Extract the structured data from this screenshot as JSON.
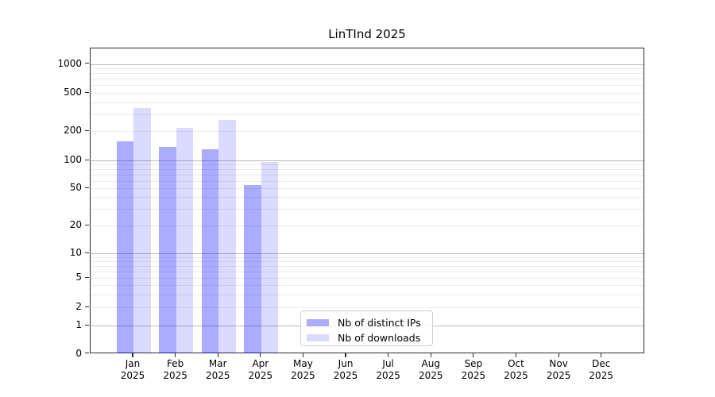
{
  "title": "LinTInd 2025",
  "chart_data": {
    "type": "bar",
    "title": "LinTInd 2025",
    "x_axis": {
      "months": [
        "Jan",
        "Feb",
        "Mar",
        "Apr",
        "May",
        "Jun",
        "Jul",
        "Aug",
        "Sep",
        "Oct",
        "Nov",
        "Dec"
      ],
      "year": "2025"
    },
    "y_axis": {
      "scale": "symlog",
      "ticks": [
        0,
        1,
        2,
        5,
        10,
        20,
        50,
        100,
        200,
        500,
        1000
      ],
      "ylim": [
        0,
        1500
      ]
    },
    "series": [
      {
        "name": "Nb of distinct IPs",
        "color": "rgba(0,0,255,0.33)",
        "color_hex_on_white": "#aaaaff",
        "values": [
          158,
          138,
          130,
          54,
          null,
          null,
          null,
          null,
          null,
          null,
          null,
          null
        ]
      },
      {
        "name": "Nb of downloads",
        "color": "rgba(0,0,255,0.14)",
        "color_hex_on_white": "#dcdcff",
        "values": [
          350,
          215,
          260,
          97,
          null,
          null,
          null,
          null,
          null,
          null,
          null,
          null
        ]
      }
    ],
    "grid": true,
    "legend_position": "bottom-center"
  }
}
